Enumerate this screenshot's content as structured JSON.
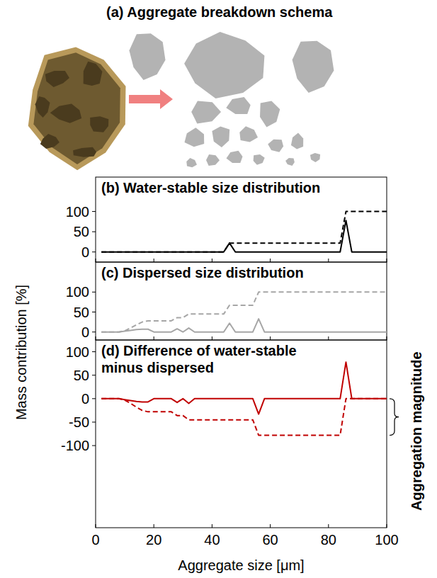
{
  "schema": {
    "title": "(a) Aggregate breakdown schema"
  },
  "chart_data": [
    {
      "type": "line",
      "title": "(b) Water-stable size distribution",
      "x": [
        2,
        4,
        6,
        8,
        10,
        12,
        14,
        16,
        18,
        20,
        22,
        24,
        26,
        28,
        30,
        32,
        34,
        36,
        38,
        40,
        42,
        44,
        46,
        48,
        50,
        52,
        54,
        56,
        58,
        60,
        62,
        64,
        66,
        68,
        70,
        72,
        74,
        76,
        78,
        80,
        82,
        84,
        86,
        88,
        90,
        92,
        94,
        96,
        98,
        100
      ],
      "xlim": [
        0,
        100
      ],
      "xticks": [
        0,
        20,
        40,
        60,
        80,
        100
      ],
      "ylim": [
        -25,
        185
      ],
      "yticks": [
        0,
        50,
        100
      ],
      "tick_labels": "y",
      "series": [
        {
          "color": "#000000",
          "line_style": "solid",
          "values": [
            0,
            0,
            0,
            0,
            0,
            0,
            0,
            0,
            0,
            0,
            0,
            0,
            0,
            0,
            0,
            0,
            0,
            0,
            0,
            0,
            0,
            0,
            22,
            0,
            0,
            0,
            0,
            0,
            0,
            0,
            0,
            0,
            0,
            0,
            0,
            0,
            0,
            0,
            0,
            0,
            0,
            0,
            78,
            0,
            0,
            0,
            0,
            0,
            0,
            0
          ]
        },
        {
          "color": "#000000",
          "line_style": "dashed",
          "values": [
            0,
            0,
            0,
            0,
            0,
            0,
            0,
            0,
            0,
            0,
            0,
            0,
            0,
            0,
            0,
            0,
            0,
            0,
            0,
            0,
            0,
            0,
            22,
            22,
            22,
            22,
            22,
            22,
            22,
            22,
            22,
            22,
            22,
            22,
            22,
            22,
            22,
            22,
            22,
            22,
            22,
            22,
            100,
            100,
            100,
            100,
            100,
            100,
            100,
            100
          ]
        }
      ]
    },
    {
      "type": "line",
      "title": "(c) Dispersed size distribution",
      "y_label": "Mass contribution [%]",
      "x": [
        2,
        4,
        6,
        8,
        10,
        12,
        14,
        16,
        18,
        20,
        22,
        24,
        26,
        28,
        30,
        32,
        34,
        36,
        38,
        40,
        42,
        44,
        46,
        48,
        50,
        52,
        54,
        56,
        58,
        60,
        62,
        64,
        66,
        68,
        70,
        72,
        74,
        76,
        78,
        80,
        82,
        84,
        86,
        88,
        90,
        92,
        94,
        96,
        98,
        100
      ],
      "xlim": [
        0,
        100
      ],
      "xticks": [
        0,
        20,
        40,
        60,
        80,
        100
      ],
      "ylim": [
        -20,
        175
      ],
      "yticks": [
        0,
        50,
        100
      ],
      "tick_labels": "y",
      "series": [
        {
          "color": "#a6a6a6",
          "line_style": "solid",
          "values": [
            0,
            0,
            0,
            0,
            2,
            4,
            6,
            7,
            7,
            0,
            0,
            0,
            0,
            8,
            0,
            10,
            0,
            0,
            0,
            0,
            0,
            0,
            22,
            0,
            0,
            0,
            0,
            33,
            0,
            0,
            0,
            0,
            0,
            0,
            0,
            0,
            0,
            0,
            0,
            0,
            0,
            0,
            0,
            0,
            0,
            0,
            0,
            0,
            0,
            0
          ]
        },
        {
          "color": "#a6a6a6",
          "line_style": "dashed",
          "values": [
            0,
            0,
            0,
            0,
            3,
            10,
            18,
            25,
            28,
            28,
            28,
            28,
            28,
            36,
            36,
            45,
            45,
            45,
            45,
            45,
            45,
            45,
            67,
            67,
            67,
            67,
            67,
            100,
            100,
            100,
            100,
            100,
            100,
            100,
            100,
            100,
            100,
            100,
            100,
            100,
            100,
            100,
            100,
            100,
            100,
            100,
            100,
            100,
            100,
            100
          ]
        }
      ]
    },
    {
      "type": "line",
      "title": "(d) Difference of water-stable minus dispersed",
      "x_label": "Aggregate size [μm]",
      "annotation": "Aggregation magnitude",
      "x": [
        2,
        4,
        6,
        8,
        10,
        12,
        14,
        16,
        18,
        20,
        22,
        24,
        26,
        28,
        30,
        32,
        34,
        36,
        38,
        40,
        42,
        44,
        46,
        48,
        50,
        52,
        54,
        56,
        58,
        60,
        62,
        64,
        66,
        68,
        70,
        72,
        74,
        76,
        78,
        80,
        82,
        84,
        86,
        88,
        90,
        92,
        94,
        96,
        98,
        100
      ],
      "xlim": [
        0,
        100
      ],
      "xticks": [
        0,
        20,
        40,
        60,
        80,
        100
      ],
      "ylim": [
        -275,
        125
      ],
      "yticks": [
        -100,
        -50,
        0,
        50,
        100
      ],
      "series": [
        {
          "color": "#c00000",
          "line_style": "solid",
          "values": [
            0,
            0,
            0,
            0,
            -2,
            -4,
            -6,
            -7,
            -7,
            0,
            0,
            0,
            0,
            -8,
            0,
            -10,
            0,
            0,
            0,
            0,
            0,
            0,
            0,
            0,
            0,
            0,
            0,
            -33,
            0,
            0,
            0,
            0,
            0,
            0,
            0,
            0,
            0,
            0,
            0,
            0,
            0,
            0,
            78,
            0,
            0,
            0,
            0,
            0,
            0,
            0
          ]
        },
        {
          "color": "#c00000",
          "line_style": "dashed",
          "values": [
            0,
            0,
            0,
            0,
            -3,
            -10,
            -18,
            -25,
            -28,
            -28,
            -28,
            -28,
            -28,
            -36,
            -36,
            -45,
            -45,
            -45,
            -45,
            -45,
            -45,
            -45,
            -45,
            -45,
            -45,
            -45,
            -45,
            -78,
            -78,
            -78,
            -78,
            -78,
            -78,
            -78,
            -78,
            -78,
            -78,
            -78,
            -78,
            -78,
            -78,
            -78,
            0,
            0,
            0,
            0,
            0,
            0,
            0,
            0
          ]
        }
      ]
    }
  ]
}
